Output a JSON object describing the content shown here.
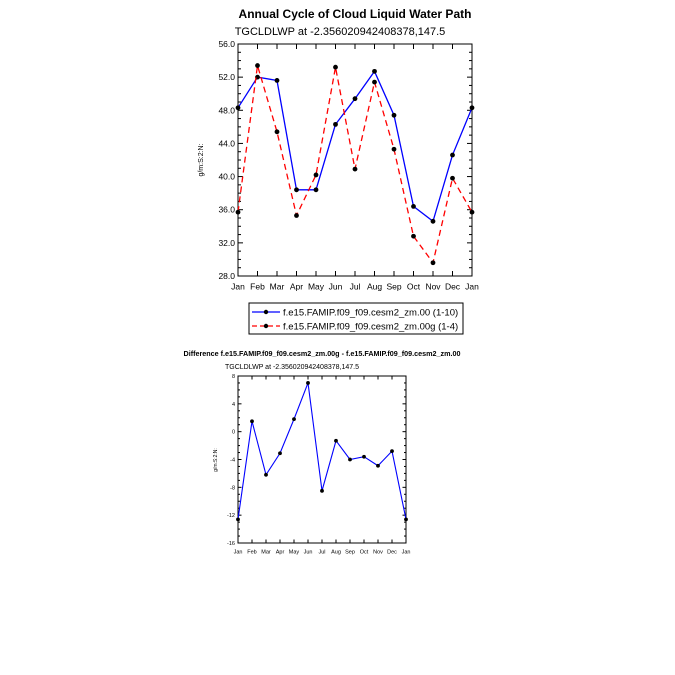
{
  "top": {
    "title": "Annual Cycle of Cloud Liquid Water Path",
    "subtitle": "TGCLDLWP at -2.356020942408378,147.5",
    "ylabel": "g/m:S:2:N:",
    "yticks": [
      "56.0",
      "52.0",
      "48.0",
      "44.0",
      "40.0",
      "36.0",
      "32.0",
      "28.0"
    ],
    "legend": [
      {
        "label": "f.e15.FAMIP.f09_f09.cesm2_zm.00 (1-10)"
      },
      {
        "label": "f.e15.FAMIP.f09_f09.cesm2_zm.00g (1-4)"
      }
    ]
  },
  "bottom": {
    "title": "Difference f.e15.FAMIP.f09_f09.cesm2_zm.00g - f.e15.FAMIP.f09_f09.cesm2_zm.00",
    "subtitle": "TGCLDLWP at -2.356020942408378,147.5",
    "ylabel": "g/m:S:2:N:",
    "yticks": [
      "8",
      "4",
      "0",
      "-4",
      "-8",
      "-12",
      "-16"
    ]
  },
  "chart_data": [
    {
      "type": "line",
      "title": "Annual Cycle of Cloud Liquid Water Path",
      "subtitle": "TGCLDLWP at -2.356020942408378,147.5",
      "xlabel": "",
      "ylabel": "g/m:S:2:N:",
      "categories": [
        "Jan",
        "Feb",
        "Mar",
        "Apr",
        "May",
        "Jun",
        "Jul",
        "Aug",
        "Sep",
        "Oct",
        "Nov",
        "Dec",
        "Jan"
      ],
      "ylim": [
        28,
        56
      ],
      "series": [
        {
          "name": "f.e15.FAMIP.f09_f09.cesm2_zm.00 (1-10)",
          "color": "#0000ff",
          "dash": "solid",
          "values": [
            48.3,
            52.0,
            51.6,
            38.4,
            38.4,
            46.3,
            49.4,
            52.7,
            47.4,
            36.4,
            34.6,
            42.6,
            48.3
          ]
        },
        {
          "name": "f.e15.FAMIP.f09_f09.cesm2_zm.00g (1-4)",
          "color": "#ff0000",
          "dash": "dashed",
          "values": [
            35.7,
            53.4,
            45.4,
            35.3,
            40.2,
            53.2,
            40.9,
            51.4,
            43.3,
            32.8,
            29.6,
            39.8,
            35.7
          ]
        }
      ],
      "legend_position": "below",
      "grid": false
    },
    {
      "type": "line",
      "title": "Difference f.e15.FAMIP.f09_f09.cesm2_zm.00g - f.e15.FAMIP.f09_f09.cesm2_zm.00",
      "subtitle": "TGCLDLWP at -2.356020942408378,147.5",
      "xlabel": "",
      "ylabel": "g/m:S:2:N:",
      "categories": [
        "Jan",
        "Feb",
        "Mar",
        "Apr",
        "May",
        "Jun",
        "Jul",
        "Aug",
        "Sep",
        "Oct",
        "Nov",
        "Dec",
        "Jan"
      ],
      "ylim": [
        -16,
        8
      ],
      "series": [
        {
          "color": "#0000ff",
          "dash": "solid",
          "values": [
            -12.6,
            1.5,
            -6.2,
            -3.1,
            1.8,
            7.0,
            -8.5,
            -1.3,
            -4.0,
            -3.6,
            -4.9,
            -2.8,
            -12.6
          ]
        }
      ],
      "grid": false
    }
  ]
}
